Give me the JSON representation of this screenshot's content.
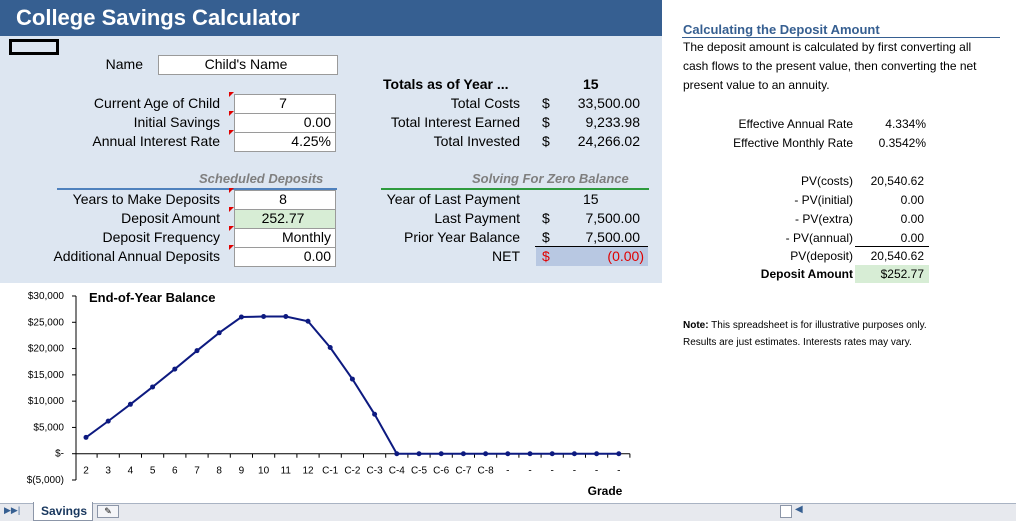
{
  "title": "College Savings Calculator",
  "name": {
    "label": "Name",
    "value": "Child's Name"
  },
  "inputs": {
    "current_age": {
      "label": "Current Age of Child",
      "value": "7"
    },
    "initial_savings": {
      "label": "Initial Savings",
      "value": "0.00"
    },
    "interest_rate": {
      "label": "Annual Interest Rate",
      "value": "4.25%"
    }
  },
  "totals": {
    "heading": "Totals as of Year ...",
    "year": "15",
    "rows": [
      {
        "label": "Total Costs",
        "cur": "$",
        "value": "33,500.00"
      },
      {
        "label": "Total Interest Earned",
        "cur": "$",
        "value": "9,233.98"
      },
      {
        "label": "Total Invested",
        "cur": "$",
        "value": "24,266.02"
      }
    ]
  },
  "scheduled": {
    "heading": "Scheduled Deposits",
    "years": {
      "label": "Years to Make Deposits",
      "value": "8"
    },
    "deposit": {
      "label": "Deposit Amount",
      "value": "252.77"
    },
    "frequency": {
      "label": "Deposit Frequency",
      "value": "Monthly"
    },
    "additional": {
      "label": "Additional Annual Deposits",
      "value": "0.00"
    }
  },
  "solving": {
    "heading": "Solving For Zero Balance",
    "last_year": {
      "label": "Year of Last Payment",
      "value": "15"
    },
    "last_payment": {
      "label": "Last Payment",
      "cur": "$",
      "value": "7,500.00"
    },
    "prior_balance": {
      "label": "Prior Year Balance",
      "cur": "$",
      "value": "7,500.00"
    },
    "net": {
      "label": "NET",
      "cur": "$",
      "value": "(0.00)"
    }
  },
  "right": {
    "heading": "Calculating the Deposit Amount",
    "description_lines": [
      "The deposit amount is calculated by first converting all",
      "cash flows to the present value, then converting the net",
      "present value to an annuity."
    ],
    "rates": [
      {
        "label": "Effective Annual Rate",
        "value": "4.334%"
      },
      {
        "label": "Effective Monthly Rate",
        "value": "0.3542%"
      }
    ],
    "pv": [
      {
        "label": "PV(costs)",
        "value": "20,540.62"
      },
      {
        "label": "- PV(initial)",
        "value": "0.00"
      },
      {
        "label": "- PV(extra)",
        "value": "0.00"
      },
      {
        "label": "- PV(annual)",
        "value": "0.00"
      },
      {
        "label": "PV(deposit)",
        "value": "20,540.62"
      }
    ],
    "deposit_amount": {
      "label": "Deposit Amount",
      "value": "$252.77"
    },
    "note_bold": "Note:",
    "note_line1": " This spreadsheet is for illustrative purposes only.",
    "note_line2": "Results are just estimates. Interests rates may vary."
  },
  "tab": {
    "label": "Savings"
  },
  "colors": {
    "header_blue": "#365f91",
    "panel": "#dde6f1",
    "line": "#0d1a80",
    "green": "#d7edd5",
    "net_bg": "#b8c8e2"
  },
  "chart_data": {
    "type": "line",
    "title": "End-of-Year Balance",
    "xlabel": "Grade",
    "ylabel": "",
    "categories": [
      "2",
      "3",
      "4",
      "5",
      "6",
      "7",
      "8",
      "9",
      "10",
      "11",
      "12",
      "C-1",
      "C-2",
      "C-3",
      "C-4",
      "C-5",
      "C-6",
      "C-7",
      "C-8",
      "-",
      "-",
      "-",
      "-",
      "-",
      "-"
    ],
    "values": [
      3100,
      6200,
      9400,
      12700,
      16100,
      19600,
      23000,
      26000,
      26100,
      26100,
      25200,
      20200,
      14200,
      7500,
      0,
      0,
      0,
      0,
      0,
      0,
      0,
      0,
      0,
      0,
      0
    ],
    "ylim": [
      -5000,
      30000
    ],
    "yticks": [
      {
        "v": 30000,
        "label": "$30,000"
      },
      {
        "v": 25000,
        "label": "$25,000"
      },
      {
        "v": 20000,
        "label": "$20,000"
      },
      {
        "v": 15000,
        "label": "$15,000"
      },
      {
        "v": 10000,
        "label": "$10,000"
      },
      {
        "v": 5000,
        "label": "$5,000"
      },
      {
        "v": 0,
        "label": "$-"
      },
      {
        "v": -5000,
        "label": "$(5,000)"
      }
    ],
    "grid": false,
    "legend": "none"
  }
}
